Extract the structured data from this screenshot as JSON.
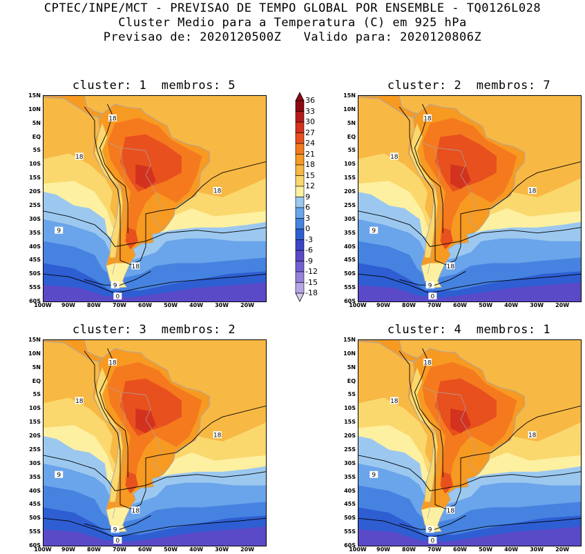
{
  "header": {
    "line1": "CPTEC/INPE/MCT - PREVISAO DE TEMPO GLOBAL POR ENSEMBLE - TQ0126L028",
    "line2": "Cluster Medio para a Temperatura (C) em 925 hPa",
    "line3": "Previsao de: 2020120500Z   Valido para: 2020120806Z"
  },
  "panels": [
    {
      "title": "cluster: 1  membros: 5"
    },
    {
      "title": "cluster: 2  membros: 7"
    },
    {
      "title": "cluster: 3  membros: 2"
    },
    {
      "title": "cluster: 4  membros: 1"
    }
  ],
  "axes": {
    "lat_labels": [
      "15N",
      "10N",
      "5N",
      "EQ",
      "5S",
      "10S",
      "15S",
      "20S",
      "25S",
      "30S",
      "35S",
      "40S",
      "45S",
      "50S",
      "55S",
      "60S"
    ],
    "lon_labels": [
      "100W",
      "90W",
      "80W",
      "70W",
      "60W",
      "50W",
      "40W",
      "30W",
      "20W"
    ]
  },
  "contour_labels": [
    "18",
    "18",
    "18",
    "9",
    "18",
    "9",
    "0"
  ],
  "colorbar": {
    "labels": [
      "36",
      "33",
      "30",
      "27",
      "24",
      "21",
      "18",
      "15",
      "12",
      "9",
      "6",
      "3",
      "0",
      "-3",
      "-6",
      "-9",
      "-12",
      "-15",
      "-18"
    ],
    "colors": [
      "#8c0a12",
      "#b41c1c",
      "#d2321e",
      "#e8501e",
      "#f57a1e",
      "#f79a22",
      "#f8b844",
      "#fad86e",
      "#fdf0a0",
      "#9cc8f0",
      "#6aa4ea",
      "#4682e0",
      "#2e5ed2",
      "#3c46c8",
      "#5a4ac8",
      "#7460d2",
      "#9482dc",
      "#b6a6e6",
      "#d6ccf0"
    ]
  },
  "palette": {
    "ocean_warm": "#f8b844",
    "ocean_mid": "#fad86e",
    "pale": "#fdf0a0",
    "light_blue": "#9cc8f0",
    "mid_blue": "#6aa4ea",
    "blue": "#4682e0",
    "dark_blue": "#2e5ed2",
    "violet": "#5a4ac8",
    "land_orange": "#f79a22",
    "land_red": "#f57a1e",
    "land_deep": "#e8501e",
    "land_hot": "#d2321e"
  }
}
